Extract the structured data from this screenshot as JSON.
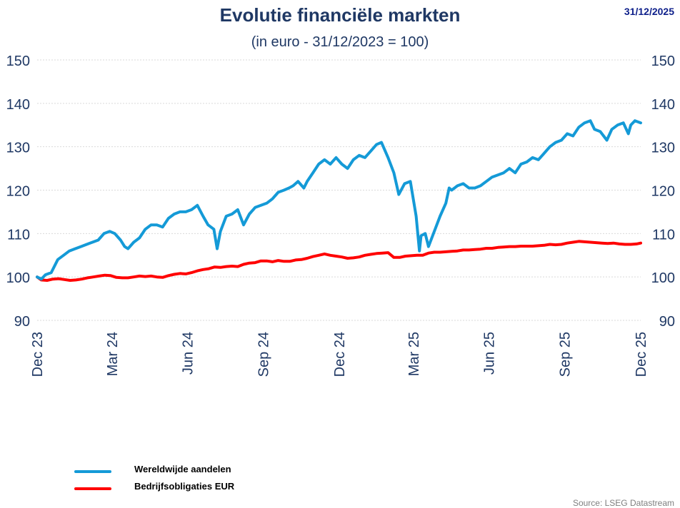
{
  "header": {
    "title": "Evolutie financiële markten",
    "subtitle": "(in euro - 31/12/2023 = 100)",
    "date": "31/12/2025"
  },
  "footer": {
    "source": "Source: LSEG Datastream"
  },
  "colors": {
    "equities": "#149ad7",
    "bonds": "#ff0000",
    "text": "#1f3864",
    "grid": "#d9d9d9"
  },
  "chart_data": {
    "type": "line",
    "title": "Evolutie financiële markten",
    "subtitle": "(in euro - 31/12/2023 = 100)",
    "ylim": [
      90,
      150
    ],
    "yticks": [
      90,
      100,
      110,
      120,
      130,
      140,
      150
    ],
    "ytick_labels": [
      "90",
      "100",
      "110",
      "120",
      "130",
      "140",
      "150"
    ],
    "xlim": [
      "2023-12-31",
      "2025-12-31"
    ],
    "xticks": [
      {
        "date": "2023-12-31",
        "label": "Dec 23"
      },
      {
        "date": "2024-03-31",
        "label": "Mar 24"
      },
      {
        "date": "2024-06-30",
        "label": "Jun 24"
      },
      {
        "date": "2024-09-30",
        "label": "Sep 24"
      },
      {
        "date": "2024-12-31",
        "label": "Dec 24"
      },
      {
        "date": "2025-03-31",
        "label": "Mar 25"
      },
      {
        "date": "2025-06-30",
        "label": "Jun 25"
      },
      {
        "date": "2025-09-30",
        "label": "Sep 25"
      },
      {
        "date": "2025-12-31",
        "label": "Dec 25"
      }
    ],
    "grid": true,
    "legend_position": "bottom-left",
    "series": [
      {
        "name": "Wereldwijde aandelen",
        "color": "#149ad7",
        "points": [
          [
            "2023-12-31",
            100
          ],
          [
            "2024-01-05",
            99.5
          ],
          [
            "2024-01-10",
            100.5
          ],
          [
            "2024-01-17",
            101
          ],
          [
            "2024-01-25",
            104
          ],
          [
            "2024-02-01",
            105
          ],
          [
            "2024-02-08",
            106
          ],
          [
            "2024-02-15",
            106.5
          ],
          [
            "2024-02-22",
            107
          ],
          [
            "2024-02-29",
            107.5
          ],
          [
            "2024-03-07",
            108
          ],
          [
            "2024-03-14",
            108.5
          ],
          [
            "2024-03-21",
            110
          ],
          [
            "2024-03-28",
            110.5
          ],
          [
            "2024-04-03",
            110
          ],
          [
            "2024-04-10",
            108.5
          ],
          [
            "2024-04-15",
            107
          ],
          [
            "2024-04-19",
            106.5
          ],
          [
            "2024-04-26",
            108
          ],
          [
            "2024-05-03",
            109
          ],
          [
            "2024-05-10",
            111
          ],
          [
            "2024-05-17",
            112
          ],
          [
            "2024-05-24",
            112
          ],
          [
            "2024-05-31",
            111.5
          ],
          [
            "2024-06-07",
            113.5
          ],
          [
            "2024-06-14",
            114.5
          ],
          [
            "2024-06-21",
            115
          ],
          [
            "2024-06-28",
            115
          ],
          [
            "2024-07-05",
            115.5
          ],
          [
            "2024-07-12",
            116.5
          ],
          [
            "2024-07-19",
            114
          ],
          [
            "2024-07-25",
            112
          ],
          [
            "2024-08-01",
            111
          ],
          [
            "2024-08-05",
            106.5
          ],
          [
            "2024-08-09",
            110.5
          ],
          [
            "2024-08-16",
            114
          ],
          [
            "2024-08-23",
            114.5
          ],
          [
            "2024-08-30",
            115.5
          ],
          [
            "2024-09-06",
            112
          ],
          [
            "2024-09-13",
            114.5
          ],
          [
            "2024-09-20",
            116
          ],
          [
            "2024-09-27",
            116.5
          ],
          [
            "2024-10-04",
            117
          ],
          [
            "2024-10-11",
            118
          ],
          [
            "2024-10-18",
            119.5
          ],
          [
            "2024-10-25",
            120
          ],
          [
            "2024-10-31",
            120.5
          ],
          [
            "2024-11-05",
            121
          ],
          [
            "2024-11-11",
            122
          ],
          [
            "2024-11-18",
            120.5
          ],
          [
            "2024-11-22",
            122
          ],
          [
            "2024-11-29",
            124
          ],
          [
            "2024-12-06",
            126
          ],
          [
            "2024-12-13",
            127
          ],
          [
            "2024-12-20",
            126
          ],
          [
            "2024-12-27",
            127.5
          ],
          [
            "2025-01-03",
            126
          ],
          [
            "2025-01-10",
            125
          ],
          [
            "2025-01-17",
            127
          ],
          [
            "2025-01-24",
            128
          ],
          [
            "2025-01-31",
            127.5
          ],
          [
            "2025-02-07",
            129
          ],
          [
            "2025-02-14",
            130.5
          ],
          [
            "2025-02-20",
            131
          ],
          [
            "2025-02-28",
            127.5
          ],
          [
            "2025-03-07",
            124
          ],
          [
            "2025-03-13",
            119
          ],
          [
            "2025-03-20",
            121.5
          ],
          [
            "2025-03-27",
            122
          ],
          [
            "2025-04-03",
            114
          ],
          [
            "2025-04-07",
            106
          ],
          [
            "2025-04-09",
            109.5
          ],
          [
            "2025-04-14",
            110
          ],
          [
            "2025-04-18",
            107
          ],
          [
            "2025-04-25",
            110.5
          ],
          [
            "2025-05-02",
            114
          ],
          [
            "2025-05-09",
            117
          ],
          [
            "2025-05-13",
            120.5
          ],
          [
            "2025-05-16",
            120
          ],
          [
            "2025-05-23",
            121
          ],
          [
            "2025-05-30",
            121.5
          ],
          [
            "2025-06-06",
            120.5
          ],
          [
            "2025-06-13",
            120.5
          ],
          [
            "2025-06-20",
            121
          ],
          [
            "2025-06-27",
            122
          ],
          [
            "2025-07-04",
            123
          ],
          [
            "2025-07-11",
            123.5
          ],
          [
            "2025-07-18",
            124
          ],
          [
            "2025-07-25",
            125
          ],
          [
            "2025-08-01",
            124
          ],
          [
            "2025-08-08",
            126
          ],
          [
            "2025-08-15",
            126.5
          ],
          [
            "2025-08-22",
            127.5
          ],
          [
            "2025-08-29",
            127
          ],
          [
            "2025-09-05",
            128.5
          ],
          [
            "2025-09-12",
            130
          ],
          [
            "2025-09-19",
            131
          ],
          [
            "2025-09-26",
            131.5
          ],
          [
            "2025-10-03",
            133
          ],
          [
            "2025-10-10",
            132.5
          ],
          [
            "2025-10-17",
            134.5
          ],
          [
            "2025-10-24",
            135.5
          ],
          [
            "2025-10-31",
            136
          ],
          [
            "2025-11-05",
            134
          ],
          [
            "2025-11-12",
            133.5
          ],
          [
            "2025-11-20",
            131.5
          ],
          [
            "2025-11-26",
            134
          ],
          [
            "2025-12-03",
            135
          ],
          [
            "2025-12-10",
            135.5
          ],
          [
            "2025-12-16",
            133
          ],
          [
            "2025-12-19",
            135
          ],
          [
            "2025-12-24",
            136
          ],
          [
            "2025-12-31",
            135.5
          ]
        ]
      },
      {
        "name": "Bedrijfsobligaties EUR",
        "color": "#ff0000",
        "points": [
          [
            "2023-12-31",
            100
          ],
          [
            "2024-01-05",
            99.3
          ],
          [
            "2024-01-12",
            99.2
          ],
          [
            "2024-01-19",
            99.5
          ],
          [
            "2024-01-26",
            99.6
          ],
          [
            "2024-02-02",
            99.4
          ],
          [
            "2024-02-09",
            99.2
          ],
          [
            "2024-02-16",
            99.3
          ],
          [
            "2024-02-23",
            99.5
          ],
          [
            "2024-03-01",
            99.8
          ],
          [
            "2024-03-08",
            100
          ],
          [
            "2024-03-15",
            100.2
          ],
          [
            "2024-03-22",
            100.4
          ],
          [
            "2024-03-29",
            100.3
          ],
          [
            "2024-04-05",
            99.9
          ],
          [
            "2024-04-12",
            99.8
          ],
          [
            "2024-04-19",
            99.8
          ],
          [
            "2024-04-26",
            100
          ],
          [
            "2024-05-03",
            100.2
          ],
          [
            "2024-05-10",
            100.1
          ],
          [
            "2024-05-17",
            100.2
          ],
          [
            "2024-05-24",
            100
          ],
          [
            "2024-05-31",
            99.9
          ],
          [
            "2024-06-07",
            100.3
          ],
          [
            "2024-06-14",
            100.6
          ],
          [
            "2024-06-21",
            100.8
          ],
          [
            "2024-06-28",
            100.7
          ],
          [
            "2024-07-05",
            101
          ],
          [
            "2024-07-12",
            101.4
          ],
          [
            "2024-07-19",
            101.7
          ],
          [
            "2024-07-26",
            101.9
          ],
          [
            "2024-08-02",
            102.3
          ],
          [
            "2024-08-09",
            102.2
          ],
          [
            "2024-08-16",
            102.4
          ],
          [
            "2024-08-23",
            102.5
          ],
          [
            "2024-08-30",
            102.4
          ],
          [
            "2024-09-06",
            102.9
          ],
          [
            "2024-09-13",
            103.2
          ],
          [
            "2024-09-20",
            103.3
          ],
          [
            "2024-09-27",
            103.7
          ],
          [
            "2024-10-04",
            103.7
          ],
          [
            "2024-10-11",
            103.5
          ],
          [
            "2024-10-18",
            103.8
          ],
          [
            "2024-10-25",
            103.6
          ],
          [
            "2024-11-01",
            103.6
          ],
          [
            "2024-11-08",
            103.9
          ],
          [
            "2024-11-15",
            104
          ],
          [
            "2024-11-22",
            104.3
          ],
          [
            "2024-11-29",
            104.7
          ],
          [
            "2024-12-06",
            105
          ],
          [
            "2024-12-13",
            105.3
          ],
          [
            "2024-12-20",
            105
          ],
          [
            "2024-12-27",
            104.8
          ],
          [
            "2025-01-03",
            104.6
          ],
          [
            "2025-01-10",
            104.3
          ],
          [
            "2025-01-17",
            104.4
          ],
          [
            "2025-01-24",
            104.6
          ],
          [
            "2025-01-31",
            105
          ],
          [
            "2025-02-07",
            105.2
          ],
          [
            "2025-02-14",
            105.4
          ],
          [
            "2025-02-21",
            105.5
          ],
          [
            "2025-02-28",
            105.6
          ],
          [
            "2025-03-07",
            104.5
          ],
          [
            "2025-03-14",
            104.5
          ],
          [
            "2025-03-21",
            104.8
          ],
          [
            "2025-03-28",
            104.9
          ],
          [
            "2025-04-04",
            105
          ],
          [
            "2025-04-11",
            105
          ],
          [
            "2025-04-18",
            105.5
          ],
          [
            "2025-04-25",
            105.7
          ],
          [
            "2025-05-02",
            105.7
          ],
          [
            "2025-05-09",
            105.8
          ],
          [
            "2025-05-16",
            105.9
          ],
          [
            "2025-05-23",
            106
          ],
          [
            "2025-05-30",
            106.2
          ],
          [
            "2025-06-06",
            106.2
          ],
          [
            "2025-06-13",
            106.3
          ],
          [
            "2025-06-20",
            106.4
          ],
          [
            "2025-06-27",
            106.6
          ],
          [
            "2025-07-04",
            106.6
          ],
          [
            "2025-07-11",
            106.8
          ],
          [
            "2025-07-18",
            106.9
          ],
          [
            "2025-07-25",
            107
          ],
          [
            "2025-08-01",
            107
          ],
          [
            "2025-08-08",
            107.1
          ],
          [
            "2025-08-15",
            107.1
          ],
          [
            "2025-08-22",
            107.1
          ],
          [
            "2025-08-29",
            107.2
          ],
          [
            "2025-09-05",
            107.3
          ],
          [
            "2025-09-12",
            107.5
          ],
          [
            "2025-09-19",
            107.4
          ],
          [
            "2025-09-26",
            107.5
          ],
          [
            "2025-10-03",
            107.8
          ],
          [
            "2025-10-10",
            108
          ],
          [
            "2025-10-17",
            108.2
          ],
          [
            "2025-10-24",
            108.1
          ],
          [
            "2025-10-31",
            108
          ],
          [
            "2025-11-07",
            107.9
          ],
          [
            "2025-11-14",
            107.8
          ],
          [
            "2025-11-21",
            107.7
          ],
          [
            "2025-11-28",
            107.8
          ],
          [
            "2025-12-05",
            107.6
          ],
          [
            "2025-12-12",
            107.5
          ],
          [
            "2025-12-19",
            107.5
          ],
          [
            "2025-12-26",
            107.6
          ],
          [
            "2025-12-31",
            107.8
          ]
        ]
      }
    ]
  }
}
